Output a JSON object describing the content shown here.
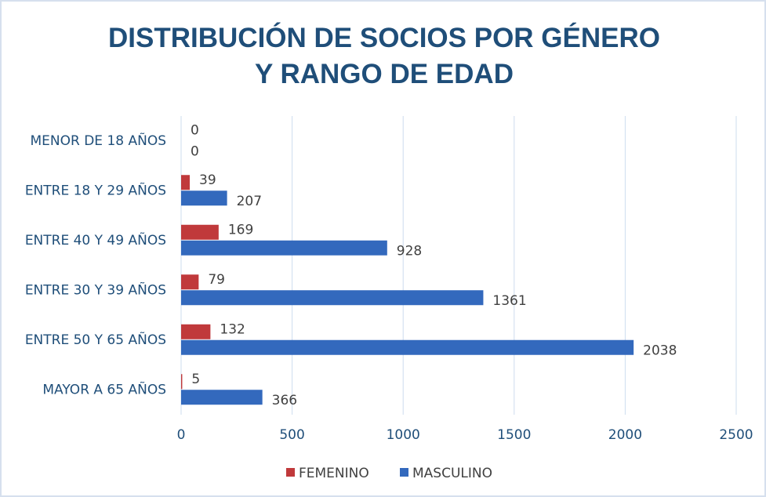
{
  "chart_data": {
    "type": "barh",
    "title": "DISTRIBUCIÓN DE SOCIOS POR GÉNERO Y RANGO DE EDAD",
    "categories": [
      "MENOR DE 18 AÑOS",
      "ENTRE 18 Y 29 AÑOS",
      "ENTRE 40 Y 49 AÑOS",
      "ENTRE 30 Y 39 AÑOS",
      "ENTRE 50 Y 65 AÑOS",
      "MAYOR A 65 AÑOS"
    ],
    "series": [
      {
        "name": "FEMENINO",
        "color": "#c0393b",
        "values": [
          0,
          39,
          169,
          79,
          132,
          5
        ]
      },
      {
        "name": "MASCULINO",
        "color": "#3369bd",
        "values": [
          0,
          207,
          928,
          1361,
          2038,
          366
        ]
      }
    ],
    "xlim": [
      0,
      2500
    ],
    "xticks": [
      0,
      500,
      1000,
      1500,
      2000,
      2500
    ],
    "grid": true,
    "legend": "bottom"
  }
}
